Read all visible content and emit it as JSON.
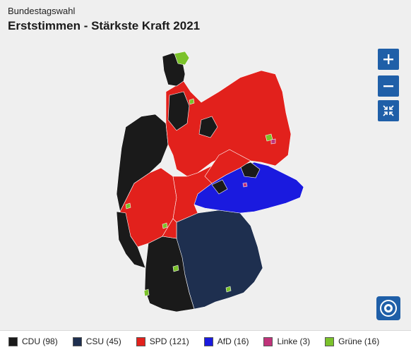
{
  "header": {
    "kicker": "Bundestagswahl",
    "title": "Erststimmen - Stärkste Kraft 2021"
  },
  "controls": {
    "zoom_in": "plus-icon",
    "zoom_out": "minus-icon",
    "reset": "collapse-arrows-icon",
    "logo": "ard-tagesschau-logo"
  },
  "legend": [
    {
      "party": "CDU",
      "seats": "(98)",
      "color": "#1a1a1a"
    },
    {
      "party": "CSU",
      "seats": "(45)",
      "color": "#1e2f4f"
    },
    {
      "party": "SPD",
      "seats": "(121)",
      "color": "#e2211c"
    },
    {
      "party": "AfD",
      "seats": "(16)",
      "color": "#1a1adf"
    },
    {
      "party": "Linke",
      "seats": "(3)",
      "color": "#c0337a"
    },
    {
      "party": "Grüne",
      "seats": "(16)",
      "color": "#7bc22b"
    }
  ]
}
